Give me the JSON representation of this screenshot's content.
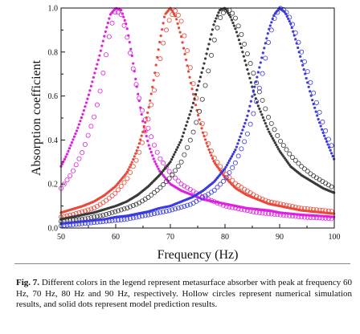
{
  "chart_data": {
    "type": "scatter",
    "xlabel": "Frequency (Hz)",
    "ylabel": "Absorption coefficient",
    "xlim": [
      50,
      100
    ],
    "ylim": [
      0,
      1.0
    ],
    "xticks": [
      "50",
      "60",
      "70",
      "80",
      "90",
      "100"
    ],
    "yticks": [
      "0.0",
      "0.2",
      "0.4",
      "0.6",
      "0.8",
      "1.0"
    ],
    "grid": false,
    "legend": "none",
    "series": [
      {
        "color": "#e020e0",
        "peak_hz": 60,
        "kind": "model",
        "points": [
          [
            50,
            0.28
          ],
          [
            51,
            0.33
          ],
          [
            52,
            0.39
          ],
          [
            53,
            0.45
          ],
          [
            54,
            0.52
          ],
          [
            55,
            0.6
          ],
          [
            56,
            0.69
          ],
          [
            57,
            0.78
          ],
          [
            58,
            0.88
          ],
          [
            59,
            0.97
          ],
          [
            60,
            1.0
          ],
          [
            61,
            0.99
          ],
          [
            62,
            0.92
          ],
          [
            63,
            0.78
          ],
          [
            64,
            0.62
          ],
          [
            65,
            0.48
          ],
          [
            66,
            0.38
          ],
          [
            67,
            0.31
          ],
          [
            68,
            0.26
          ],
          [
            69,
            0.23
          ],
          [
            70,
            0.2
          ],
          [
            72,
            0.17
          ],
          [
            74,
            0.15
          ],
          [
            76,
            0.13
          ],
          [
            78,
            0.12
          ],
          [
            80,
            0.11
          ],
          [
            82,
            0.1
          ],
          [
            84,
            0.09
          ],
          [
            86,
            0.085
          ],
          [
            88,
            0.08
          ],
          [
            90,
            0.07
          ],
          [
            92,
            0.065
          ],
          [
            94,
            0.06
          ],
          [
            96,
            0.057
          ],
          [
            98,
            0.054
          ],
          [
            100,
            0.05
          ]
        ]
      },
      {
        "color": "#e020e0",
        "peak_hz": 60,
        "kind": "simulation",
        "points": [
          [
            50,
            0.18
          ],
          [
            52,
            0.25
          ],
          [
            54,
            0.35
          ],
          [
            56,
            0.5
          ],
          [
            57,
            0.6
          ],
          [
            58,
            0.75
          ],
          [
            59,
            0.9
          ],
          [
            60,
            0.99
          ],
          [
            61,
            0.97
          ],
          [
            62,
            0.88
          ],
          [
            63,
            0.75
          ],
          [
            64,
            0.62
          ],
          [
            65,
            0.52
          ],
          [
            66,
            0.45
          ],
          [
            67,
            0.38
          ],
          [
            68,
            0.32
          ],
          [
            70,
            0.25
          ],
          [
            72,
            0.2
          ],
          [
            74,
            0.17
          ],
          [
            76,
            0.14
          ],
          [
            78,
            0.12
          ],
          [
            80,
            0.1
          ],
          [
            82,
            0.09
          ],
          [
            84,
            0.08
          ],
          [
            86,
            0.07
          ],
          [
            88,
            0.065
          ],
          [
            90,
            0.06
          ],
          [
            92,
            0.055
          ],
          [
            94,
            0.05
          ],
          [
            96,
            0.047
          ],
          [
            98,
            0.045
          ],
          [
            100,
            0.042
          ]
        ]
      },
      {
        "color": "#e84a3a",
        "peak_hz": 70,
        "kind": "model",
        "points": [
          [
            50,
            0.07
          ],
          [
            52,
            0.085
          ],
          [
            54,
            0.1
          ],
          [
            56,
            0.12
          ],
          [
            58,
            0.15
          ],
          [
            60,
            0.19
          ],
          [
            62,
            0.25
          ],
          [
            63,
            0.3
          ],
          [
            64,
            0.36
          ],
          [
            65,
            0.44
          ],
          [
            66,
            0.54
          ],
          [
            67,
            0.68
          ],
          [
            68,
            0.84
          ],
          [
            69,
            0.97
          ],
          [
            70,
            1.0
          ],
          [
            71,
            0.96
          ],
          [
            72,
            0.87
          ],
          [
            73,
            0.75
          ],
          [
            74,
            0.63
          ],
          [
            75,
            0.52
          ],
          [
            76,
            0.43
          ],
          [
            77,
            0.36
          ],
          [
            78,
            0.3
          ],
          [
            80,
            0.23
          ],
          [
            82,
            0.18
          ],
          [
            84,
            0.15
          ],
          [
            86,
            0.13
          ],
          [
            88,
            0.11
          ],
          [
            90,
            0.1
          ],
          [
            92,
            0.09
          ],
          [
            94,
            0.08
          ],
          [
            96,
            0.075
          ],
          [
            98,
            0.07
          ],
          [
            100,
            0.065
          ]
        ]
      },
      {
        "color": "#e84a3a",
        "peak_hz": 70,
        "kind": "simulation",
        "points": [
          [
            50,
            0.05
          ],
          [
            52,
            0.06
          ],
          [
            54,
            0.075
          ],
          [
            56,
            0.09
          ],
          [
            58,
            0.12
          ],
          [
            60,
            0.16
          ],
          [
            62,
            0.22
          ],
          [
            64,
            0.32
          ],
          [
            65,
            0.4
          ],
          [
            66,
            0.5
          ],
          [
            67,
            0.62
          ],
          [
            68,
            0.75
          ],
          [
            69,
            0.88
          ],
          [
            70,
            0.96
          ],
          [
            71,
            0.99
          ],
          [
            72,
            0.94
          ],
          [
            73,
            0.82
          ],
          [
            74,
            0.68
          ],
          [
            75,
            0.56
          ],
          [
            76,
            0.46
          ],
          [
            77,
            0.38
          ],
          [
            78,
            0.32
          ],
          [
            80,
            0.25
          ],
          [
            82,
            0.2
          ],
          [
            84,
            0.17
          ],
          [
            86,
            0.14
          ],
          [
            88,
            0.12
          ],
          [
            90,
            0.11
          ],
          [
            92,
            0.1
          ],
          [
            94,
            0.09
          ],
          [
            96,
            0.085
          ],
          [
            98,
            0.08
          ],
          [
            100,
            0.075
          ]
        ]
      },
      {
        "color": "#3a3a3a",
        "peak_hz": 80,
        "kind": "model",
        "points": [
          [
            50,
            0.04
          ],
          [
            52,
            0.05
          ],
          [
            54,
            0.06
          ],
          [
            56,
            0.07
          ],
          [
            58,
            0.085
          ],
          [
            60,
            0.1
          ],
          [
            62,
            0.12
          ],
          [
            64,
            0.15
          ],
          [
            66,
            0.19
          ],
          [
            68,
            0.24
          ],
          [
            70,
            0.3
          ],
          [
            72,
            0.4
          ],
          [
            74,
            0.55
          ],
          [
            75,
            0.64
          ],
          [
            76,
            0.73
          ],
          [
            77,
            0.83
          ],
          [
            78,
            0.93
          ],
          [
            79,
            0.99
          ],
          [
            80,
            1.0
          ],
          [
            81,
            0.96
          ],
          [
            82,
            0.9
          ],
          [
            83,
            0.82
          ],
          [
            84,
            0.73
          ],
          [
            85,
            0.64
          ],
          [
            86,
            0.56
          ],
          [
            88,
            0.44
          ],
          [
            90,
            0.35
          ],
          [
            92,
            0.28
          ],
          [
            94,
            0.24
          ],
          [
            96,
            0.21
          ],
          [
            98,
            0.18
          ],
          [
            100,
            0.16
          ]
        ]
      },
      {
        "color": "#3a3a3a",
        "peak_hz": 80,
        "kind": "simulation",
        "points": [
          [
            50,
            0.03
          ],
          [
            52,
            0.035
          ],
          [
            54,
            0.04
          ],
          [
            56,
            0.05
          ],
          [
            58,
            0.06
          ],
          [
            60,
            0.075
          ],
          [
            62,
            0.09
          ],
          [
            64,
            0.11
          ],
          [
            66,
            0.14
          ],
          [
            68,
            0.18
          ],
          [
            70,
            0.23
          ],
          [
            72,
            0.3
          ],
          [
            74,
            0.42
          ],
          [
            75,
            0.5
          ],
          [
            76,
            0.6
          ],
          [
            77,
            0.72
          ],
          [
            78,
            0.85
          ],
          [
            79,
            0.95
          ],
          [
            80,
            0.99
          ],
          [
            81,
            0.99
          ],
          [
            82,
            0.95
          ],
          [
            83,
            0.88
          ],
          [
            84,
            0.8
          ],
          [
            85,
            0.72
          ],
          [
            86,
            0.64
          ],
          [
            88,
            0.5
          ],
          [
            90,
            0.4
          ],
          [
            92,
            0.33
          ],
          [
            94,
            0.28
          ],
          [
            96,
            0.24
          ],
          [
            98,
            0.21
          ],
          [
            100,
            0.18
          ]
        ]
      },
      {
        "color": "#3b3be0",
        "peak_hz": 90,
        "kind": "model",
        "points": [
          [
            50,
            0.02
          ],
          [
            52,
            0.025
          ],
          [
            54,
            0.03
          ],
          [
            56,
            0.035
          ],
          [
            58,
            0.04
          ],
          [
            60,
            0.05
          ],
          [
            62,
            0.055
          ],
          [
            64,
            0.065
          ],
          [
            66,
            0.075
          ],
          [
            68,
            0.09
          ],
          [
            70,
            0.1
          ],
          [
            72,
            0.12
          ],
          [
            74,
            0.14
          ],
          [
            76,
            0.17
          ],
          [
            78,
            0.21
          ],
          [
            80,
            0.27
          ],
          [
            82,
            0.36
          ],
          [
            84,
            0.5
          ],
          [
            85,
            0.6
          ],
          [
            86,
            0.7
          ],
          [
            87,
            0.8
          ],
          [
            88,
            0.9
          ],
          [
            89,
            0.97
          ],
          [
            90,
            1.0
          ],
          [
            91,
            0.98
          ],
          [
            92,
            0.93
          ],
          [
            93,
            0.85
          ],
          [
            94,
            0.76
          ],
          [
            95,
            0.67
          ],
          [
            96,
            0.58
          ],
          [
            97,
            0.5
          ],
          [
            98,
            0.43
          ],
          [
            99,
            0.37
          ],
          [
            100,
            0.31
          ]
        ]
      },
      {
        "color": "#3b3be0",
        "peak_hz": 90,
        "kind": "simulation",
        "points": [
          [
            50,
            0.01
          ],
          [
            52,
            0.015
          ],
          [
            54,
            0.02
          ],
          [
            56,
            0.025
          ],
          [
            58,
            0.03
          ],
          [
            60,
            0.035
          ],
          [
            62,
            0.04
          ],
          [
            64,
            0.05
          ],
          [
            66,
            0.06
          ],
          [
            68,
            0.07
          ],
          [
            70,
            0.08
          ],
          [
            72,
            0.095
          ],
          [
            74,
            0.11
          ],
          [
            76,
            0.14
          ],
          [
            78,
            0.17
          ],
          [
            80,
            0.22
          ],
          [
            82,
            0.3
          ],
          [
            84,
            0.42
          ],
          [
            85,
            0.5
          ],
          [
            86,
            0.6
          ],
          [
            87,
            0.72
          ],
          [
            88,
            0.85
          ],
          [
            89,
            0.95
          ],
          [
            90,
            1.0
          ],
          [
            91,
            0.99
          ],
          [
            92,
            0.95
          ],
          [
            93,
            0.88
          ],
          [
            94,
            0.8
          ],
          [
            95,
            0.72
          ],
          [
            96,
            0.63
          ],
          [
            97,
            0.55
          ],
          [
            98,
            0.47
          ],
          [
            99,
            0.4
          ],
          [
            100,
            0.35
          ]
        ]
      }
    ]
  },
  "caption": {
    "label": "Fig. 7.",
    "text": " Different colors in the legend represent metasurface absorber with peak at frequency 60 Hz, 70 Hz, 80 Hz and 90 Hz, respectively. Hollow circles represent numerical simulation results, and solid dots represent model prediction results."
  }
}
